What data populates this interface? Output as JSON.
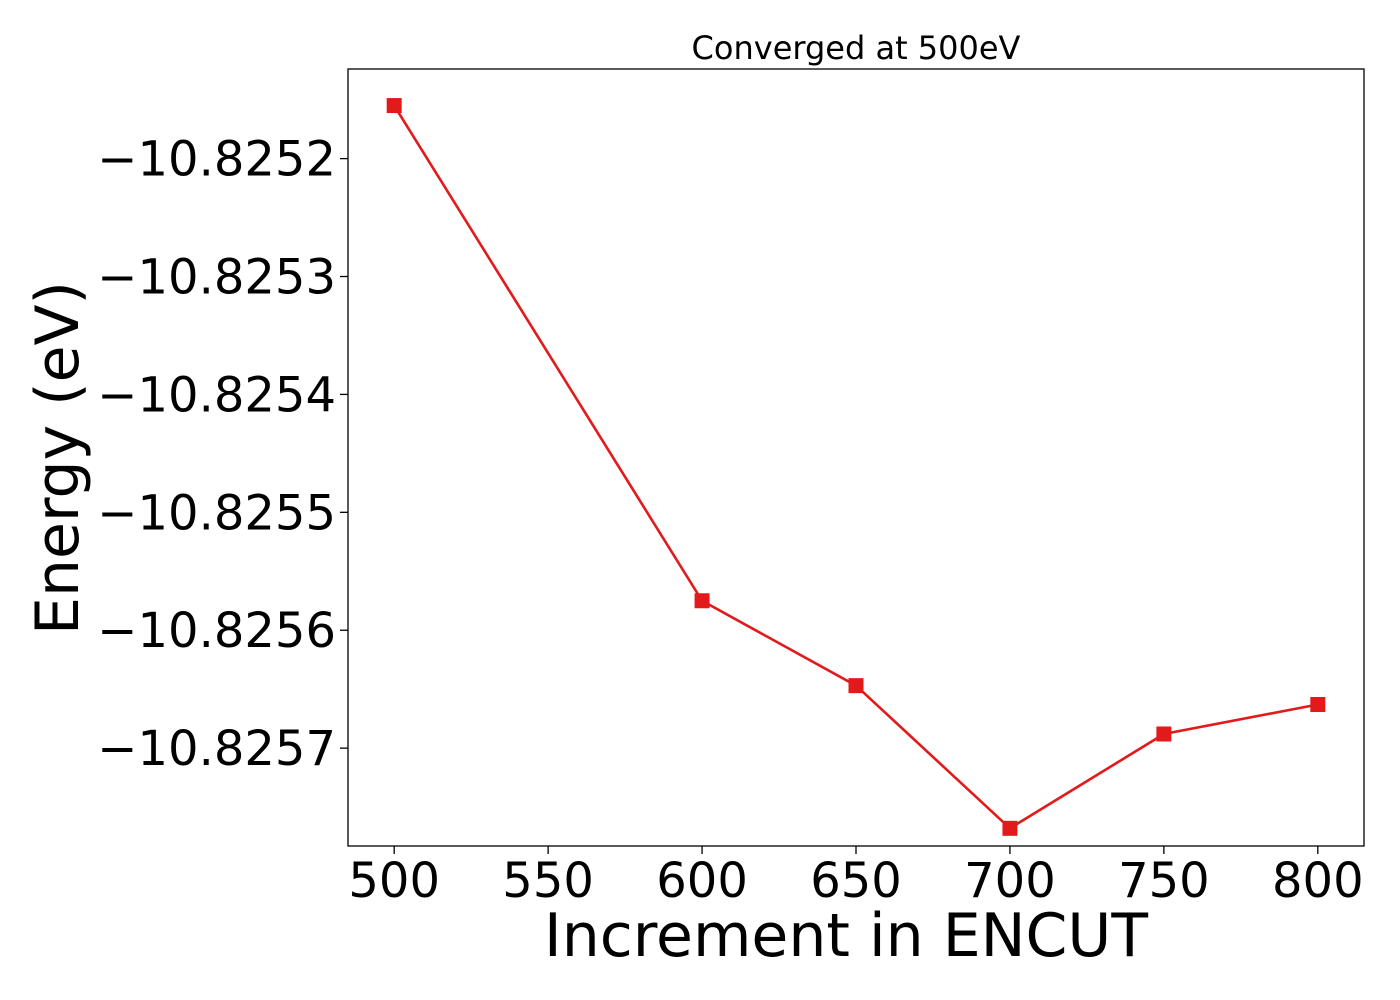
{
  "chart_data": {
    "type": "line",
    "title": "Converged at 500eV",
    "xlabel": "Increment in ENCUT",
    "ylabel": "Energy (eV)",
    "x": [
      500,
      600,
      650,
      700,
      750,
      800
    ],
    "series": [
      {
        "values": [
          -10.825155,
          -10.825575,
          -10.825647,
          -10.825768,
          -10.825688,
          -10.825663
        ],
        "color": "#e31a1c",
        "marker": "square"
      }
    ],
    "xticks": [
      500,
      550,
      600,
      650,
      700,
      750,
      800
    ],
    "xtick_labels": [
      "500",
      "550",
      "600",
      "650",
      "700",
      "750",
      "800"
    ],
    "yticks": [
      -10.8252,
      -10.8253,
      -10.8254,
      -10.8255,
      -10.8256,
      -10.8257
    ],
    "ytick_labels": [
      "−10.8252",
      "−10.8253",
      "−10.8254",
      "−10.8255",
      "−10.8256",
      "−10.8257"
    ],
    "xlim": [
      485,
      815
    ],
    "ylim": [
      -10.825783,
      -10.825124
    ],
    "grid": false,
    "legend": false
  }
}
